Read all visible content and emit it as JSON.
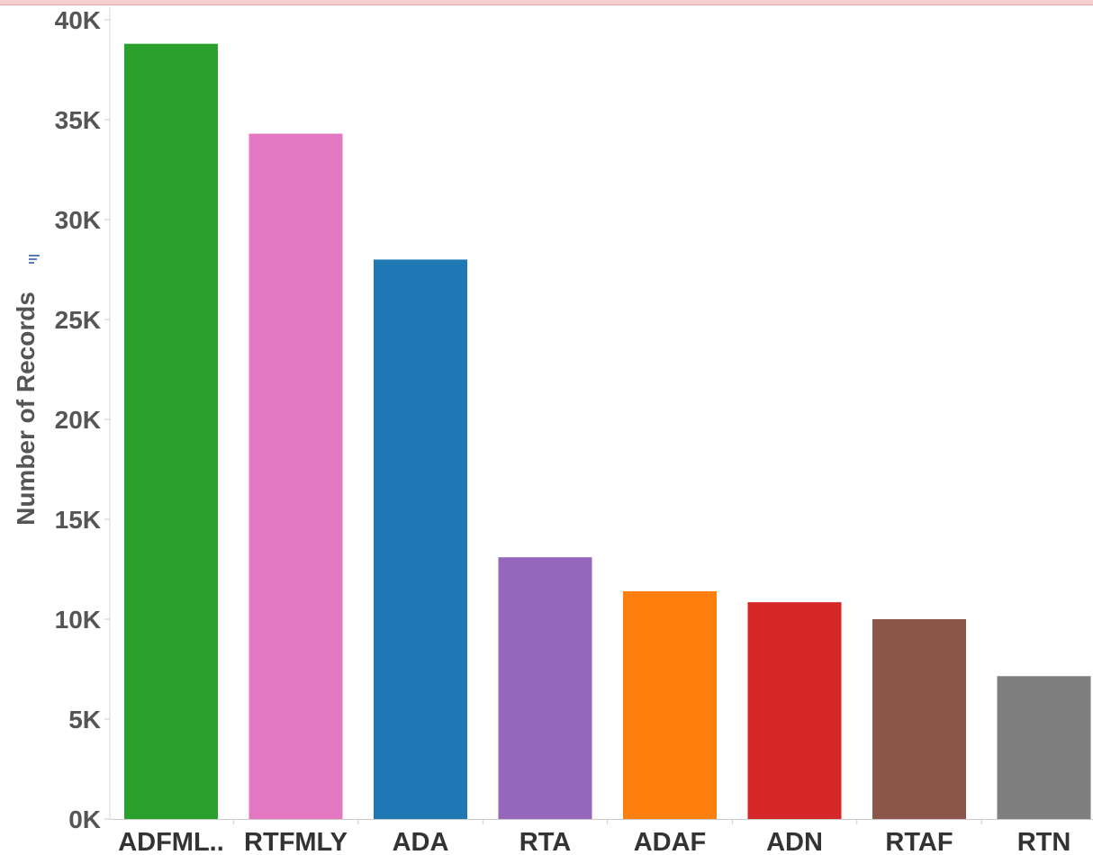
{
  "chart_data": {
    "type": "bar",
    "categories": [
      "ADFML..",
      "RTFMLY",
      "ADA",
      "RTA",
      "ADAF",
      "ADN",
      "RTAF",
      "RTN"
    ],
    "values": [
      38800,
      34300,
      28000,
      13100,
      11400,
      10850,
      10000,
      7150
    ],
    "colors": [
      "#2ca02c",
      "#e377c2",
      "#1f77b4",
      "#9467bd",
      "#ff7f0e",
      "#d62728",
      "#8c564b",
      "#7f7f7f"
    ],
    "ylabel": "Number of Records",
    "ylabel_icon": "sort-icon",
    "xlabel": "",
    "ylim": [
      0,
      40000
    ],
    "y_ticks": [
      0,
      5000,
      10000,
      15000,
      20000,
      25000,
      30000,
      35000,
      40000
    ],
    "y_tick_labels": [
      "0K",
      "5K",
      "10K",
      "15K",
      "20K",
      "25K",
      "30K",
      "35K",
      "40K"
    ],
    "grid": false
  }
}
